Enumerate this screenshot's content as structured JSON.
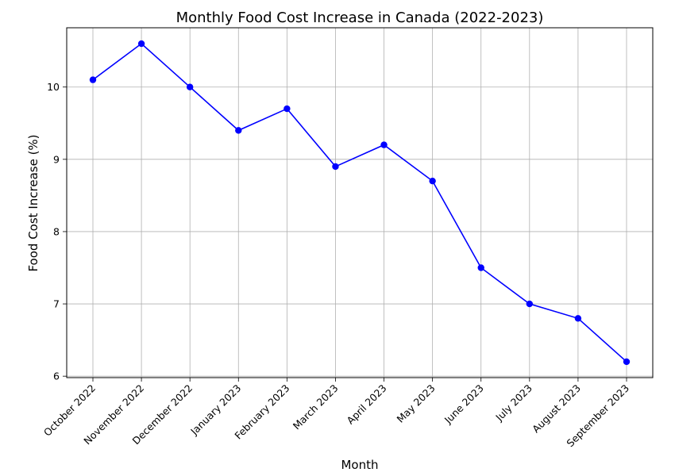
{
  "chart_data": {
    "type": "line",
    "title": "Monthly Food Cost Increase in Canada (2022-2023)",
    "xlabel": "Month",
    "ylabel": "Food Cost Increase (%)",
    "categories": [
      "October 2022",
      "November 2022",
      "December 2022",
      "January 2023",
      "February 2023",
      "March 2023",
      "April 2023",
      "May 2023",
      "June 2023",
      "July 2023",
      "August 2023",
      "September 2023"
    ],
    "values": [
      10.1,
      10.6,
      10.0,
      9.4,
      9.7,
      8.9,
      9.2,
      8.7,
      7.5,
      7.0,
      6.8,
      6.2
    ],
    "ylim": [
      5.98,
      10.82
    ],
    "yticks": [
      6,
      7,
      8,
      9,
      10
    ],
    "grid": true,
    "line_color": "#0000ff",
    "marker": "circle"
  }
}
